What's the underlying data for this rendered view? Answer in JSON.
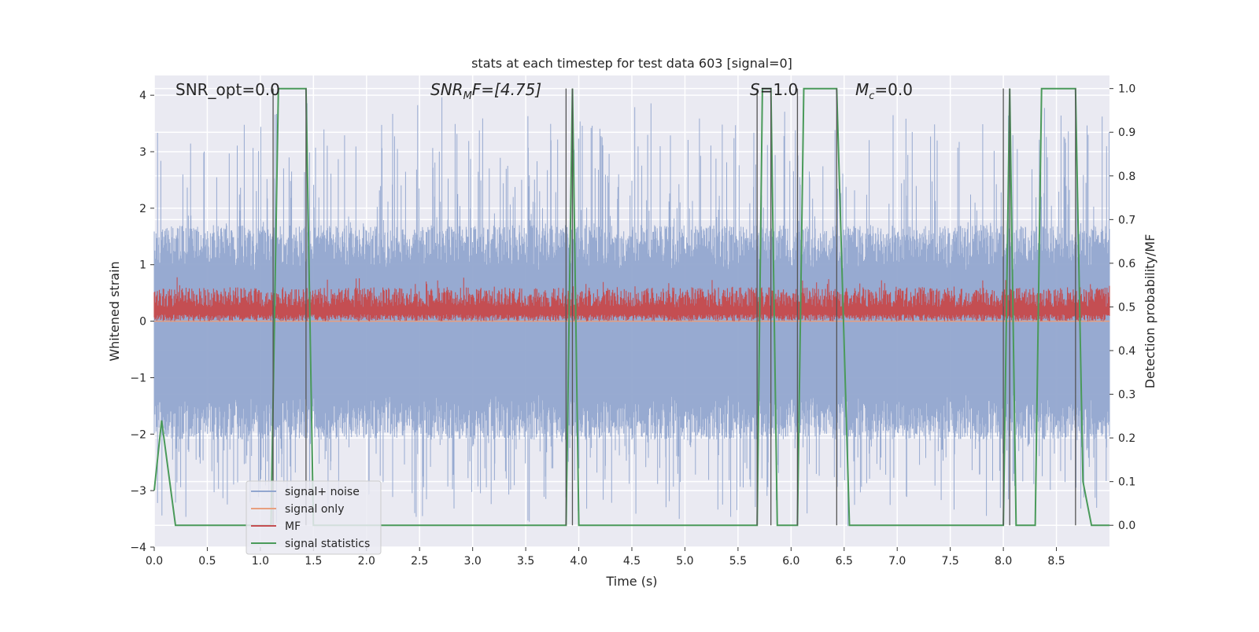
{
  "chart_data": {
    "type": "line",
    "title": "stats at each timestep for test data 603 [signal=0]",
    "xlabel": "Time (s)",
    "ylabel": "Whitened strain",
    "y2label": "Detection probability/MF",
    "xlim": [
      0.0,
      9.0
    ],
    "ylim": [
      -4.0,
      4.35
    ],
    "y2lim": [
      -0.05,
      1.03
    ],
    "x_ticks": [
      "0.0",
      "0.5",
      "1.0",
      "1.5",
      "2.0",
      "2.5",
      "3.0",
      "3.5",
      "4.0",
      "4.5",
      "5.0",
      "5.5",
      "6.0",
      "6.5",
      "7.0",
      "7.5",
      "8.0",
      "8.5"
    ],
    "y_ticks": [
      "4",
      "3",
      "2",
      "1",
      "0",
      "−1",
      "−2",
      "−3",
      "−4"
    ],
    "y2_ticks": [
      "1.0",
      "0.9",
      "0.8",
      "0.7",
      "0.6",
      "0.5",
      "0.4",
      "0.3",
      "0.2",
      "0.1",
      "0.0"
    ],
    "grid": true,
    "legend_position": "lower-left",
    "annotations": {
      "snr_opt": "SNR_opt=0.0",
      "snr_mf_name": "SNR",
      "snr_mf_sub": "M",
      "snr_mf_rest": "F=[4.75]",
      "s_name": "S",
      "s_rest": "=1.0",
      "mc_name": "M",
      "mc_sub": "c",
      "mc_rest": "=0.0"
    },
    "series": [
      {
        "name": "signal+ noise",
        "color": "#92a6cf",
        "style": "noise band, amplitude roughly ±1.7 with spikes to ±4",
        "axis": "left"
      },
      {
        "name": "signal only",
        "color": "#e8a07f",
        "values_constant": 0.0,
        "axis": "left"
      },
      {
        "name": "MF",
        "color": "#c44e52",
        "style": "noisy band between 0.0 and 0.75",
        "axis": "left"
      },
      {
        "name": "signal statistics",
        "color": "#4a9a5a",
        "axis": "right",
        "x": [
          0.0,
          0.07,
          0.2,
          1.1,
          1.17,
          1.43,
          1.5,
          3.88,
          3.94,
          4.0,
          5.68,
          5.73,
          5.81,
          5.87,
          6.06,
          6.12,
          6.43,
          6.55,
          8.0,
          8.06,
          8.12,
          8.3,
          8.36,
          8.68,
          8.75,
          8.83,
          9.0
        ],
        "values": [
          0.08,
          0.24,
          0.0,
          0.0,
          1.0,
          1.0,
          0.0,
          0.0,
          1.0,
          0.0,
          0.0,
          1.0,
          1.0,
          0.0,
          0.0,
          1.0,
          1.0,
          0.0,
          0.0,
          1.0,
          0.0,
          0.0,
          1.0,
          1.0,
          0.1,
          0.0,
          0.0
        ]
      }
    ],
    "vertical_markers_x": [
      1.12,
      1.43,
      3.88,
      3.94,
      5.68,
      5.81,
      6.06,
      6.43,
      8.0,
      8.06,
      8.68
    ],
    "marker_color": "#555555"
  }
}
